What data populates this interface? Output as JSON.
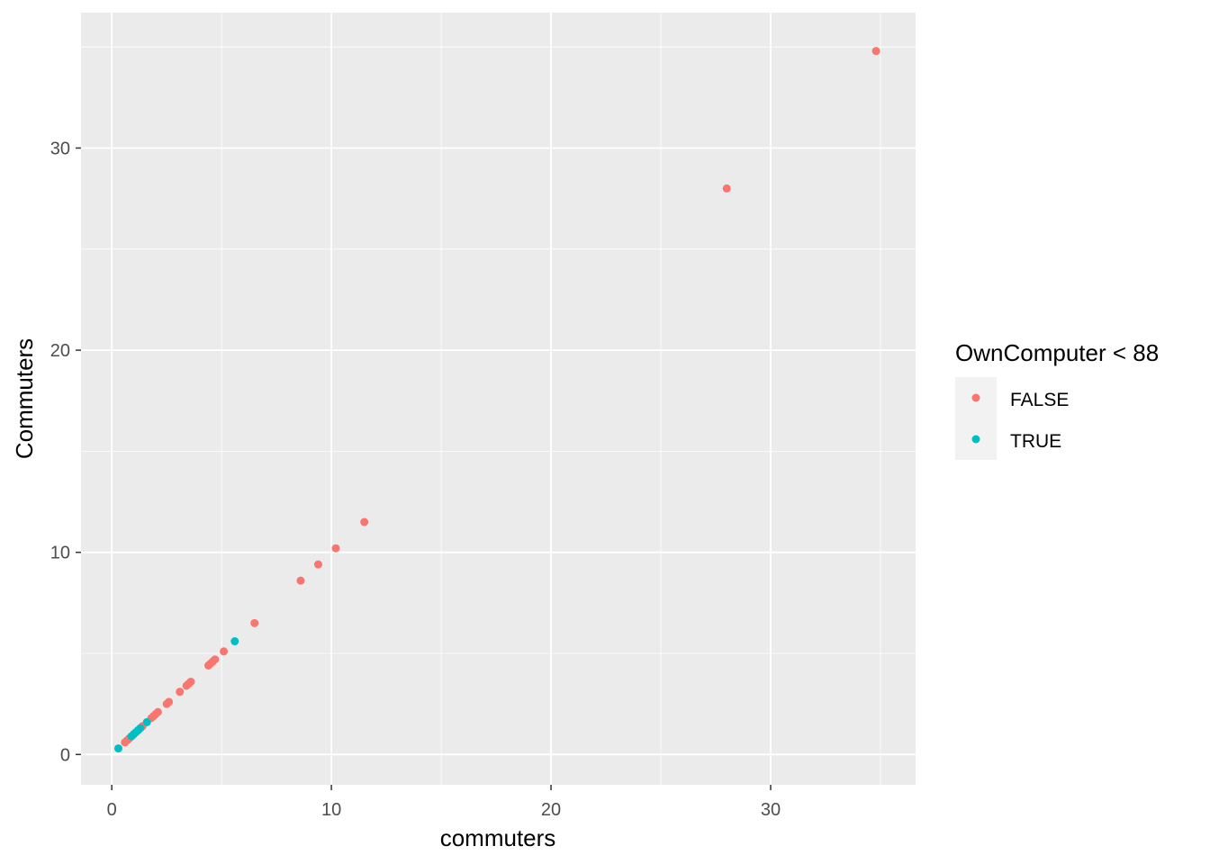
{
  "chart_data": {
    "type": "scatter",
    "title": "",
    "xlabel": "commuters",
    "ylabel": "Commuters",
    "xlim": [
      -1.4,
      36.6
    ],
    "ylim": [
      -1.5,
      36.7
    ],
    "x_ticks": [
      0,
      10,
      20,
      30
    ],
    "y_ticks": [
      0,
      10,
      20,
      30
    ],
    "grid": true,
    "legend_title": "OwnComputer < 88",
    "legend_position": "right",
    "series": [
      {
        "name": "FALSE",
        "color": "#F8766D",
        "points": [
          [
            0.6,
            0.6
          ],
          [
            0.7,
            0.7
          ],
          [
            0.8,
            0.8
          ],
          [
            0.9,
            0.9
          ],
          [
            1.0,
            1.0
          ],
          [
            1.2,
            1.2
          ],
          [
            1.4,
            1.4
          ],
          [
            1.6,
            1.6
          ],
          [
            1.8,
            1.8
          ],
          [
            1.9,
            1.9
          ],
          [
            2.0,
            2.0
          ],
          [
            2.1,
            2.1
          ],
          [
            2.5,
            2.5
          ],
          [
            2.6,
            2.6
          ],
          [
            3.1,
            3.1
          ],
          [
            3.4,
            3.4
          ],
          [
            3.5,
            3.5
          ],
          [
            3.6,
            3.6
          ],
          [
            4.4,
            4.4
          ],
          [
            4.5,
            4.5
          ],
          [
            4.6,
            4.6
          ],
          [
            4.7,
            4.7
          ],
          [
            5.1,
            5.1
          ],
          [
            6.5,
            6.5
          ],
          [
            8.6,
            8.6
          ],
          [
            9.4,
            9.4
          ],
          [
            10.2,
            10.2
          ],
          [
            11.5,
            11.5
          ],
          [
            28.0,
            28.0
          ],
          [
            34.8,
            34.8
          ]
        ]
      },
      {
        "name": "TRUE",
        "color": "#00BFC4",
        "points": [
          [
            0.3,
            0.3
          ],
          [
            0.9,
            0.9
          ],
          [
            1.0,
            1.0
          ],
          [
            1.1,
            1.1
          ],
          [
            1.2,
            1.2
          ],
          [
            1.3,
            1.3
          ],
          [
            1.6,
            1.6
          ],
          [
            5.6,
            5.6
          ]
        ]
      }
    ]
  },
  "colors": {
    "panel_bg": "#EBEBEB",
    "grid_major": "#FFFFFF",
    "tick_text": "#4D4D4D"
  }
}
